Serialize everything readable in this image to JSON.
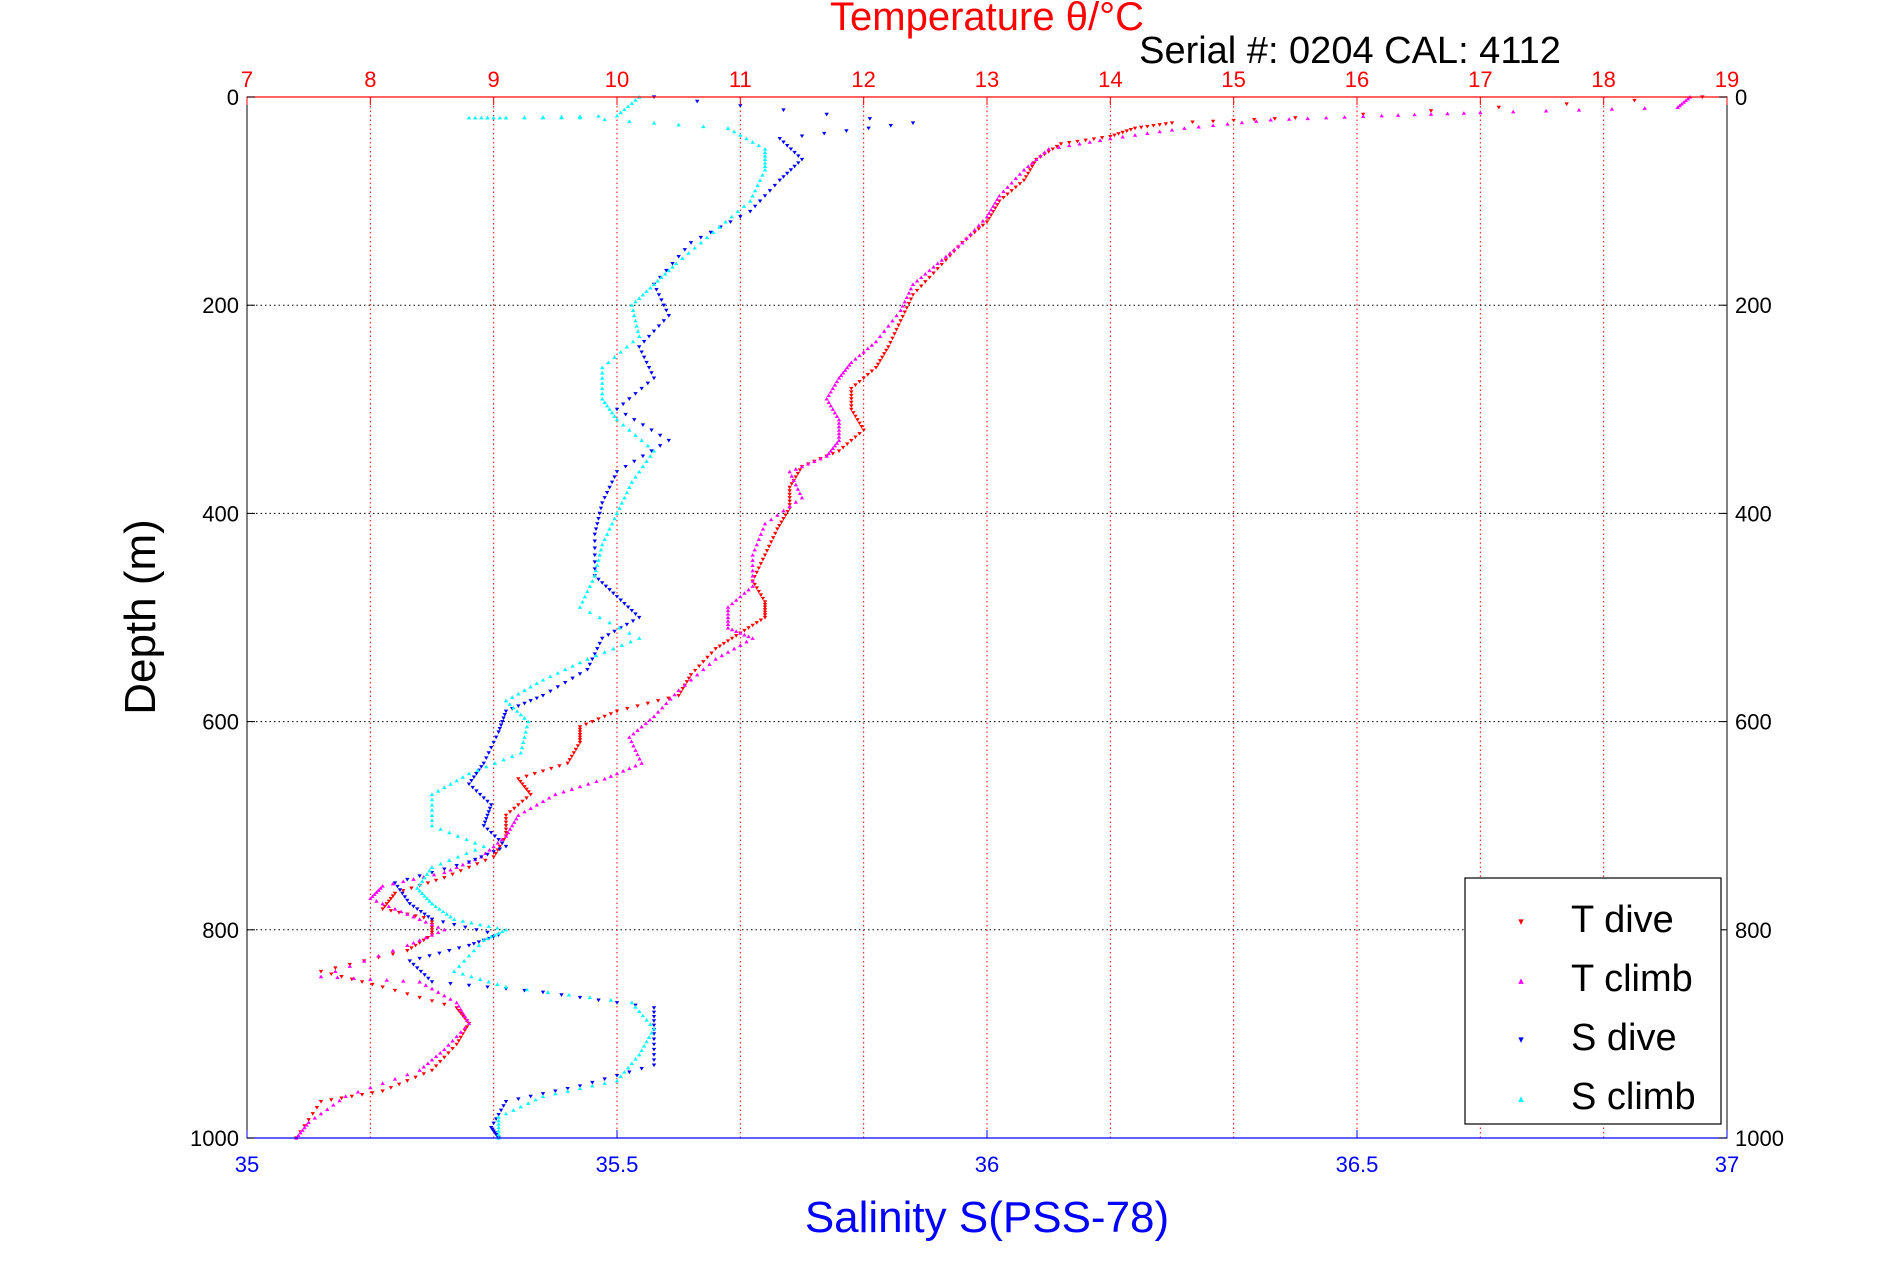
{
  "chart_data": {
    "type": "scatter",
    "title": "Temperature θ/°C",
    "subtitle": "Serial #: 0204  CAL: 4112",
    "xlabel": "Salinity S(PSS-78)",
    "ylabel": "Depth (m)",
    "x_bottom": {
      "label": "Salinity S(PSS-78)",
      "range": [
        35,
        37
      ],
      "ticks": [
        "35",
        "35.5",
        "36",
        "36.5",
        "37"
      ],
      "tick_values": [
        35,
        35.5,
        36,
        36.5,
        37
      ]
    },
    "x_top": {
      "label": "Temperature θ/°C",
      "range": [
        7,
        19
      ],
      "ticks": [
        "7",
        "8",
        "9",
        "10",
        "11",
        "12",
        "13",
        "14",
        "15",
        "16",
        "17",
        "18",
        "19"
      ],
      "tick_values": [
        7,
        8,
        9,
        10,
        11,
        12,
        13,
        14,
        15,
        16,
        17,
        18,
        19
      ]
    },
    "y": {
      "label": "Depth (m)",
      "range": [
        0,
        1000
      ],
      "reversed": true,
      "ticks": [
        "0",
        "200",
        "400",
        "600",
        "800",
        "1000"
      ],
      "tick_values": [
        0,
        200,
        400,
        600,
        800,
        1000
      ]
    },
    "grid": true,
    "legend_position": "bottom-right",
    "colors": {
      "temperature_axis": "#ff0000",
      "salinity_axis": "#0000ff",
      "grid_temp": "#ff0000",
      "grid_depth": "#000000"
    },
    "series": [
      {
        "name": "T dive",
        "axis": "temperature",
        "color": "#ff0000",
        "marker": "triangle-down",
        "points": [
          [
            18.8,
            0
          ],
          [
            15.5,
            20
          ],
          [
            14.5,
            25
          ],
          [
            14.2,
            30
          ],
          [
            14,
            38
          ],
          [
            13.6,
            45
          ],
          [
            13.4,
            60
          ],
          [
            13.3,
            80
          ],
          [
            13.1,
            100
          ],
          [
            13,
            120
          ],
          [
            12.8,
            140
          ],
          [
            12.6,
            165
          ],
          [
            12.4,
            190
          ],
          [
            12.3,
            215
          ],
          [
            12.2,
            240
          ],
          [
            12.1,
            260
          ],
          [
            11.9,
            280
          ],
          [
            11.9,
            300
          ],
          [
            12,
            320
          ],
          [
            11.8,
            340
          ],
          [
            11.5,
            355
          ],
          [
            11.4,
            375
          ],
          [
            11.4,
            395
          ],
          [
            11.3,
            415
          ],
          [
            11.2,
            440
          ],
          [
            11.1,
            465
          ],
          [
            11.2,
            485
          ],
          [
            11.2,
            500
          ],
          [
            11,
            515
          ],
          [
            10.8,
            530
          ],
          [
            10.6,
            555
          ],
          [
            10.5,
            575
          ],
          [
            10,
            590
          ],
          [
            9.7,
            605
          ],
          [
            9.7,
            620
          ],
          [
            9.6,
            640
          ],
          [
            9.2,
            655
          ],
          [
            9.3,
            670
          ],
          [
            9.1,
            690
          ],
          [
            9.1,
            710
          ],
          [
            9,
            730
          ],
          [
            8.6,
            750
          ],
          [
            8.2,
            765
          ],
          [
            8.1,
            780
          ],
          [
            8.5,
            790
          ],
          [
            8.5,
            805
          ],
          [
            8.3,
            820
          ],
          [
            7.6,
            840
          ],
          [
            8.1,
            855
          ],
          [
            8.7,
            875
          ],
          [
            8.8,
            890
          ],
          [
            8.7,
            910
          ],
          [
            8.5,
            935
          ],
          [
            8.1,
            955
          ],
          [
            7.6,
            965
          ],
          [
            7.4,
            1000
          ]
        ]
      },
      {
        "name": "T climb",
        "axis": "temperature",
        "color": "#ff00ff",
        "marker": "triangle-up",
        "points": [
          [
            18.7,
            0
          ],
          [
            18.6,
            10
          ],
          [
            17,
            15
          ],
          [
            16.2,
            18
          ],
          [
            15.3,
            22
          ],
          [
            14.6,
            30
          ],
          [
            14,
            40
          ],
          [
            13.5,
            50
          ],
          [
            13.3,
            70
          ],
          [
            13.1,
            95
          ],
          [
            13,
            115
          ],
          [
            12.8,
            140
          ],
          [
            12.6,
            160
          ],
          [
            12.4,
            180
          ],
          [
            12.3,
            205
          ],
          [
            12.1,
            235
          ],
          [
            11.9,
            255
          ],
          [
            11.8,
            270
          ],
          [
            11.7,
            290
          ],
          [
            11.8,
            310
          ],
          [
            11.8,
            330
          ],
          [
            11.7,
            345
          ],
          [
            11.4,
            360
          ],
          [
            11.5,
            385
          ],
          [
            11.2,
            410
          ],
          [
            11.1,
            440
          ],
          [
            11.1,
            470
          ],
          [
            10.9,
            490
          ],
          [
            10.9,
            510
          ],
          [
            11.1,
            520
          ],
          [
            10.8,
            540
          ],
          [
            10.5,
            570
          ],
          [
            10.3,
            595
          ],
          [
            10.1,
            615
          ],
          [
            10.2,
            640
          ],
          [
            9.9,
            655
          ],
          [
            9.5,
            670
          ],
          [
            9.2,
            690
          ],
          [
            9.1,
            710
          ],
          [
            8.9,
            730
          ],
          [
            8.6,
            745
          ],
          [
            8.1,
            758
          ],
          [
            8,
            770
          ],
          [
            8.3,
            785
          ],
          [
            8.6,
            800
          ],
          [
            8.3,
            815
          ],
          [
            7.6,
            845
          ],
          [
            8.4,
            850
          ],
          [
            8.7,
            870
          ],
          [
            8.8,
            890
          ],
          [
            8.6,
            915
          ],
          [
            8.4,
            935
          ],
          [
            7.8,
            960
          ],
          [
            7.5,
            985
          ],
          [
            7.4,
            1000
          ]
        ]
      },
      {
        "name": "S dive",
        "axis": "salinity",
        "color": "#0000ff",
        "marker": "triangle-down",
        "points": [
          [
            35.55,
            0
          ],
          [
            35.9,
            25
          ],
          [
            35.72,
            40
          ],
          [
            35.75,
            60
          ],
          [
            35.72,
            80
          ],
          [
            35.68,
            110
          ],
          [
            35.6,
            140
          ],
          [
            35.55,
            180
          ],
          [
            35.57,
            210
          ],
          [
            35.53,
            240
          ],
          [
            35.55,
            270
          ],
          [
            35.5,
            300
          ],
          [
            35.57,
            330
          ],
          [
            35.5,
            360
          ],
          [
            35.48,
            390
          ],
          [
            35.47,
            420
          ],
          [
            35.47,
            460
          ],
          [
            35.5,
            480
          ],
          [
            35.53,
            500
          ],
          [
            35.48,
            520
          ],
          [
            35.46,
            550
          ],
          [
            35.4,
            575
          ],
          [
            35.35,
            590
          ],
          [
            35.34,
            610
          ],
          [
            35.32,
            640
          ],
          [
            35.3,
            660
          ],
          [
            35.33,
            680
          ],
          [
            35.32,
            700
          ],
          [
            35.35,
            720
          ],
          [
            35.3,
            735
          ],
          [
            35.2,
            755
          ],
          [
            35.22,
            775
          ],
          [
            35.25,
            790
          ],
          [
            35.34,
            805
          ],
          [
            35.3,
            815
          ],
          [
            35.22,
            830
          ],
          [
            35.25,
            850
          ],
          [
            35.4,
            860
          ],
          [
            35.55,
            875
          ],
          [
            35.55,
            900
          ],
          [
            35.55,
            930
          ],
          [
            35.45,
            950
          ],
          [
            35.35,
            965
          ],
          [
            35.33,
            990
          ],
          [
            35.34,
            1000
          ]
        ]
      },
      {
        "name": "S climb",
        "axis": "salinity",
        "color": "#00ffff",
        "marker": "triangle-up",
        "points": [
          [
            35.53,
            0
          ],
          [
            35.5,
            18
          ],
          [
            35.35,
            20
          ],
          [
            35.3,
            20
          ],
          [
            35.45,
            20
          ],
          [
            35.65,
            30
          ],
          [
            35.7,
            50
          ],
          [
            35.7,
            70
          ],
          [
            35.68,
            100
          ],
          [
            35.63,
            130
          ],
          [
            35.58,
            160
          ],
          [
            35.55,
            180
          ],
          [
            35.52,
            200
          ],
          [
            35.53,
            230
          ],
          [
            35.48,
            260
          ],
          [
            35.48,
            290
          ],
          [
            35.5,
            310
          ],
          [
            35.55,
            340
          ],
          [
            35.52,
            370
          ],
          [
            35.5,
            400
          ],
          [
            35.48,
            430
          ],
          [
            35.47,
            460
          ],
          [
            35.45,
            490
          ],
          [
            35.53,
            520
          ],
          [
            35.46,
            540
          ],
          [
            35.4,
            560
          ],
          [
            35.35,
            580
          ],
          [
            35.38,
            600
          ],
          [
            35.37,
            630
          ],
          [
            35.3,
            650
          ],
          [
            35.25,
            670
          ],
          [
            35.25,
            700
          ],
          [
            35.32,
            720
          ],
          [
            35.25,
            740
          ],
          [
            35.23,
            760
          ],
          [
            35.25,
            775
          ],
          [
            35.28,
            790
          ],
          [
            35.35,
            800
          ],
          [
            35.32,
            810
          ],
          [
            35.28,
            840
          ],
          [
            35.35,
            855
          ],
          [
            35.52,
            870
          ],
          [
            35.55,
            895
          ],
          [
            35.53,
            920
          ],
          [
            35.5,
            945
          ],
          [
            35.4,
            960
          ],
          [
            35.34,
            980
          ],
          [
            35.34,
            1000
          ]
        ]
      }
    ]
  }
}
